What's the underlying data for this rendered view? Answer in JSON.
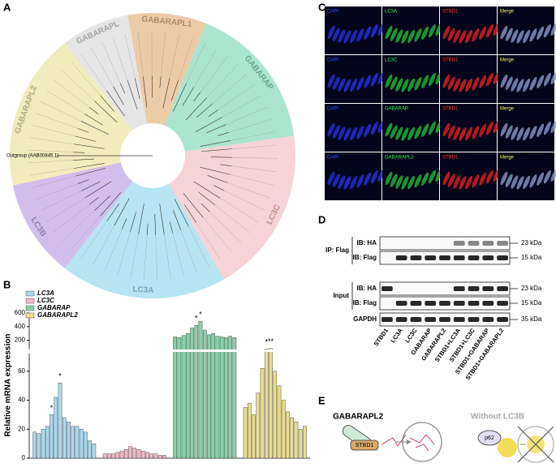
{
  "panel_letters": [
    "A",
    "B",
    "C",
    "D",
    "E"
  ],
  "tree": {
    "clades": [
      {
        "name": "GABARAPL1",
        "color": "#e6b98a"
      },
      {
        "name": "GABARAP",
        "color": "#8fdcc0"
      },
      {
        "name": "LC3C",
        "color": "#f2c4c8"
      },
      {
        "name": "LC3A",
        "color": "#9fdcec"
      },
      {
        "name": "LC3B",
        "color": "#c3a8e6"
      },
      {
        "name": "GABARAPL2",
        "color": "#ece6a4"
      },
      {
        "name": "GABARAPL",
        "color": "#dcdcdc"
      }
    ],
    "outgroup": "Outgroup (AAB00845.1)"
  },
  "chart_data": {
    "type": "bar",
    "y_label": "Relative mRNA expression",
    "ylim": [
      0,
      70
    ],
    "yticks": [
      0,
      20,
      40,
      60
    ],
    "upper_ylim": [
      100,
      600
    ],
    "upper_yticks": [
      200,
      400,
      600
    ],
    "legend": "top-left",
    "series": [
      {
        "name": "LC3A",
        "color": "#a9d9ec",
        "values": [
          18,
          17,
          20,
          22,
          30,
          42,
          52,
          28,
          25,
          22,
          22,
          20,
          18,
          12,
          10
        ]
      },
      {
        "name": "LC3C",
        "color": "#f4b8c6",
        "values": [
          3,
          3,
          3,
          4,
          5,
          6,
          8,
          7,
          6,
          5,
          4,
          3,
          3,
          2,
          2
        ]
      },
      {
        "name": "GABARAP",
        "color": "#86d1a8",
        "values": [
          250,
          240,
          270,
          300,
          380,
          420,
          480,
          350,
          280,
          300,
          260,
          250,
          240,
          260,
          240
        ]
      },
      {
        "name": "GABARAPL2",
        "color": "#e9dd8e",
        "values": [
          35,
          38,
          30,
          45,
          62,
          72,
          80,
          60,
          50,
          40,
          32,
          28,
          25,
          20,
          22
        ]
      }
    ],
    "annotations": [
      {
        "series": 0,
        "index": 4,
        "text": "*"
      },
      {
        "series": 0,
        "index": 6,
        "text": "*"
      },
      {
        "series": 2,
        "index": 5,
        "text": "*"
      },
      {
        "series": 2,
        "index": 6,
        "text": "*"
      },
      {
        "series": 3,
        "index": 5,
        "text": "*"
      },
      {
        "series": 3,
        "index": 6,
        "text": "**"
      }
    ]
  },
  "micro": {
    "rows": [
      [
        "DAPI",
        "LC3A",
        "STBD1",
        "Merge"
      ],
      [
        "DAPI",
        "LC3C",
        "STBD1",
        "Merge"
      ],
      [
        "DAPI",
        "GABARAP",
        "STBD1",
        "Merge"
      ],
      [
        "DAPI",
        "GABARAPL2",
        "STBD1",
        "Merge"
      ]
    ]
  },
  "blot": {
    "groups": [
      "IP: Flag",
      "Input"
    ],
    "rows": [
      "IB: HA",
      "IB: Flag",
      "IB: HA",
      "IB: Flag",
      "GAPDH"
    ],
    "markers": [
      "23 kDa",
      "15 kDa",
      "23 kDa",
      "15 kDa",
      "35 kDa"
    ],
    "lanes": [
      "STBD1",
      "LC3A",
      "LC3C",
      "GABARAP",
      "GABARAPL2",
      "STBD1+LC3A",
      "STBD1+LC3C",
      "STBD1+GABARAP",
      "STBD1+GABARAPL2"
    ]
  },
  "schematic": {
    "left_title": "GABARAPL2",
    "protein": "STBD1",
    "right_title": "Without LC3B",
    "receptor": "p62"
  }
}
